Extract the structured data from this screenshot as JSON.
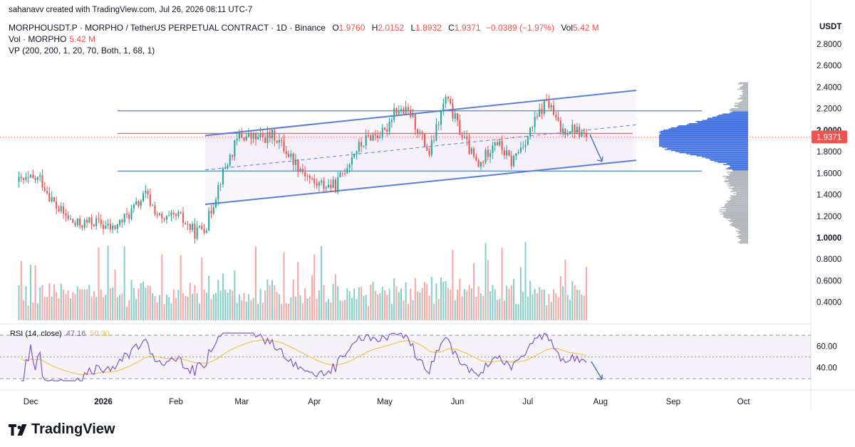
{
  "header": {
    "credit": "sahanavv created with TradingView.com, Jul 26, 2026 08:11 UTC-7",
    "symbol_line": "MORPHOUSDT.P · MORPHO / TetherUS PERPETUAL CONTRACT · 1D · Binance",
    "open_label": "O",
    "open": "1.9760",
    "high_label": "H",
    "high": "2.0152",
    "low_label": "L",
    "low": "1.8932",
    "close_label": "C",
    "close": "1.9371",
    "change": "−0.0389 (−1.97%)",
    "vol_label": "Vol",
    "vol": "5.42 M",
    "vol_indicator_label": "Vol · MORPHO",
    "vol_indicator_value": "5.42 M",
    "vp_label": "VP (200, 200, 1, 20, 70, Both, 1, 68, 1)"
  },
  "currency": "USDT",
  "rsi_label": "RSI (14, close)",
  "rsi_value": "47.16",
  "rsi_ma_value": "50.30",
  "brand": "TradingView",
  "colors": {
    "up": "#26a69a",
    "down": "#ef5350",
    "channel": "#5b7fd6",
    "level": "#2f6fb0",
    "rsi": "#7e57c2",
    "rsi_ma": "#f0c54a",
    "vp_value_area": "#3e6fe0",
    "vp_outside": "#b0b3b8"
  },
  "chart_data": {
    "type": "candlestick",
    "x_axis": [
      "Dec",
      "2026",
      "Feb",
      "Mar",
      "Apr",
      "May",
      "Jun",
      "Jul",
      "Aug",
      "Sep",
      "Oct"
    ],
    "price_axis_ticks": [
      "2.8000",
      "2.6000",
      "2.4000",
      "2.2000",
      "2.0000",
      "1.8000",
      "1.6000",
      "1.4000",
      "1.2000",
      "1.0000",
      "0.8000",
      "0.6000",
      "0.4000"
    ],
    "ylim": [
      0.3,
      2.9
    ],
    "last_price": "1.9371",
    "horizontal_levels": [
      2.18,
      1.97,
      1.62
    ],
    "rsi_axis_ticks": [
      "60.00",
      "40.00"
    ],
    "rsi_bands": [
      70,
      50,
      30
    ],
    "monthly_price_path": [
      {
        "date": "2025-11-26",
        "price": 1.52
      },
      {
        "date": "2025-12-05",
        "price": 1.55
      },
      {
        "date": "2025-12-12",
        "price": 1.28
      },
      {
        "date": "2025-12-20",
        "price": 1.12
      },
      {
        "date": "2025-12-28",
        "price": 1.15
      },
      {
        "date": "2026-01-05",
        "price": 1.08
      },
      {
        "date": "2026-01-12",
        "price": 1.22
      },
      {
        "date": "2026-01-19",
        "price": 1.4
      },
      {
        "date": "2026-01-26",
        "price": 1.15
      },
      {
        "date": "2026-02-02",
        "price": 1.2
      },
      {
        "date": "2026-02-09",
        "price": 1.05
      },
      {
        "date": "2026-02-14",
        "price": 1.12
      },
      {
        "date": "2026-02-20",
        "price": 1.55
      },
      {
        "date": "2026-02-28",
        "price": 1.95
      },
      {
        "date": "2026-03-08",
        "price": 1.92
      },
      {
        "date": "2026-03-15",
        "price": 1.95
      },
      {
        "date": "2026-03-22",
        "price": 1.75
      },
      {
        "date": "2026-04-01",
        "price": 1.5
      },
      {
        "date": "2026-04-10",
        "price": 1.48
      },
      {
        "date": "2026-04-18",
        "price": 1.8
      },
      {
        "date": "2026-04-25",
        "price": 1.95
      },
      {
        "date": "2026-05-01",
        "price": 1.97
      },
      {
        "date": "2026-05-05",
        "price": 2.2
      },
      {
        "date": "2026-05-12",
        "price": 2.15
      },
      {
        "date": "2026-05-20",
        "price": 1.78
      },
      {
        "date": "2026-05-27",
        "price": 2.3
      },
      {
        "date": "2026-06-03",
        "price": 1.95
      },
      {
        "date": "2026-06-10",
        "price": 1.65
      },
      {
        "date": "2026-06-17",
        "price": 1.92
      },
      {
        "date": "2026-06-24",
        "price": 1.7
      },
      {
        "date": "2026-07-01",
        "price": 1.95
      },
      {
        "date": "2026-07-09",
        "price": 2.28
      },
      {
        "date": "2026-07-15",
        "price": 2.0
      },
      {
        "date": "2026-07-20",
        "price": 2.02
      },
      {
        "date": "2026-07-26",
        "price": 1.94
      }
    ]
  }
}
